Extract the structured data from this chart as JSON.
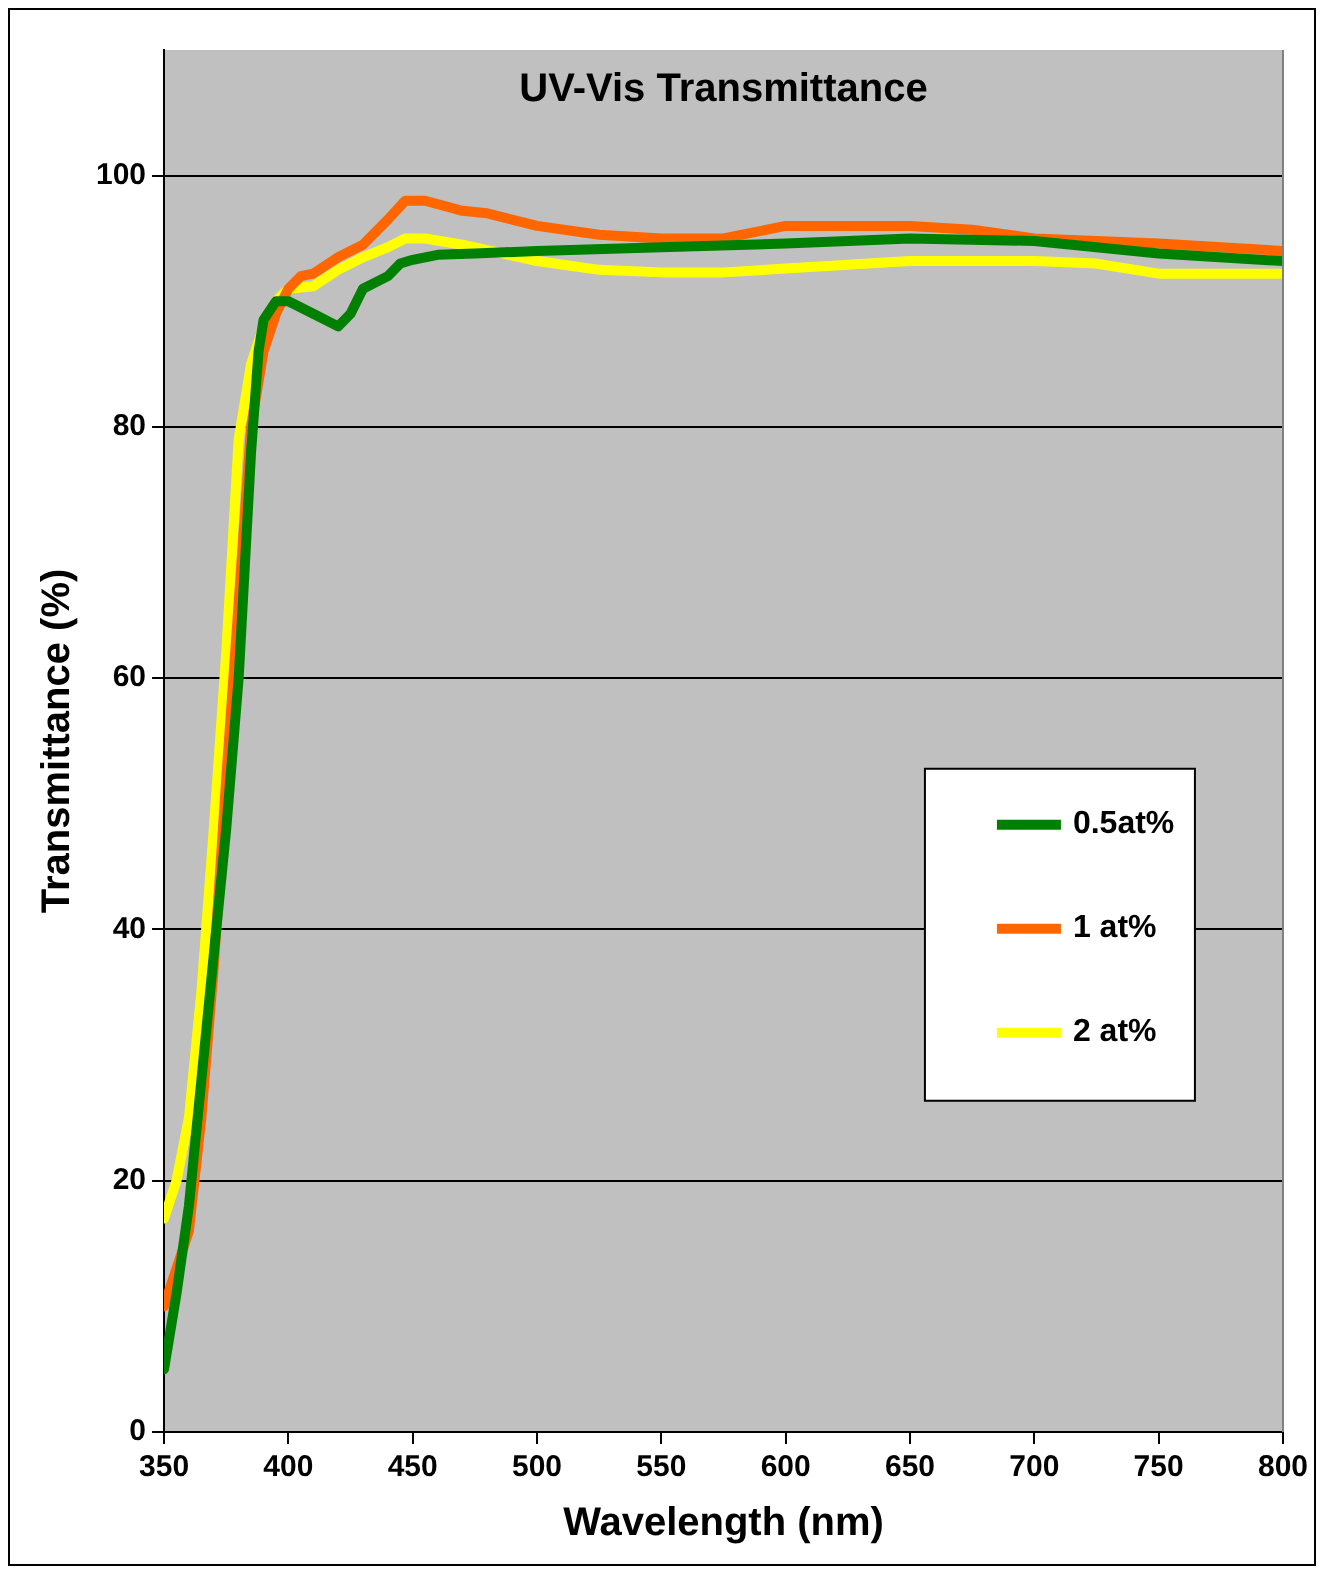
{
  "chart_data": {
    "type": "line",
    "title": "UV-Vis Transmittance",
    "xlabel": "Wavelength (nm)",
    "ylabel": "Transmittance (%)",
    "xlim": [
      350,
      800
    ],
    "xticks": [
      350,
      400,
      450,
      500,
      550,
      600,
      650,
      700,
      750,
      800
    ],
    "ylim": [
      0,
      110
    ],
    "yticks": [
      0,
      20,
      40,
      60,
      80,
      100
    ],
    "grid": "y",
    "legend": "right",
    "marker": "none",
    "line_style": "solid",
    "series": [
      {
        "name": "0.5at%",
        "color": "#008000",
        "x": [
          350,
          355,
          360,
          365,
          370,
          375,
          380,
          385,
          388,
          390,
          395,
          400,
          410,
          420,
          425,
          430,
          440,
          445,
          450,
          460,
          475,
          500,
          550,
          600,
          650,
          700,
          750,
          800
        ],
        "values": [
          5,
          11,
          18,
          28,
          38,
          48,
          60,
          78,
          86,
          88.5,
          90,
          90,
          89,
          88,
          89,
          91,
          92,
          93,
          93.3,
          93.7,
          93.8,
          94,
          94.3,
          94.6,
          95,
          94.8,
          93.8,
          93.2
        ]
      },
      {
        "name": "1 at%",
        "color": "#ff6600",
        "x": [
          350,
          355,
          360,
          365,
          370,
          375,
          380,
          385,
          390,
          395,
          400,
          405,
          410,
          420,
          430,
          440,
          447,
          455,
          470,
          480,
          500,
          525,
          550,
          575,
          600,
          650,
          675,
          700,
          750,
          800
        ],
        "values": [
          10,
          13,
          16,
          25,
          37,
          52,
          66,
          80,
          86,
          89,
          91,
          92,
          92.2,
          93.5,
          94.5,
          96.5,
          98,
          98,
          97.2,
          97,
          96,
          95.3,
          95,
          95,
          96,
          96,
          95.7,
          95,
          94.6,
          94
        ]
      },
      {
        "name": "2 at%",
        "color": "#ffff00",
        "x": [
          350,
          355,
          360,
          365,
          370,
          375,
          380,
          385,
          390,
          395,
          400,
          410,
          420,
          430,
          440,
          447,
          455,
          470,
          500,
          525,
          550,
          575,
          600,
          650,
          700,
          725,
          750,
          800
        ],
        "values": [
          17,
          20,
          25,
          35,
          48,
          62,
          79,
          85,
          88,
          90,
          91,
          91.2,
          92.5,
          93.5,
          94.3,
          95,
          95,
          94.5,
          93.2,
          92.5,
          92.3,
          92.3,
          92.6,
          93.2,
          93.2,
          93,
          92.2,
          92.2
        ]
      }
    ]
  }
}
